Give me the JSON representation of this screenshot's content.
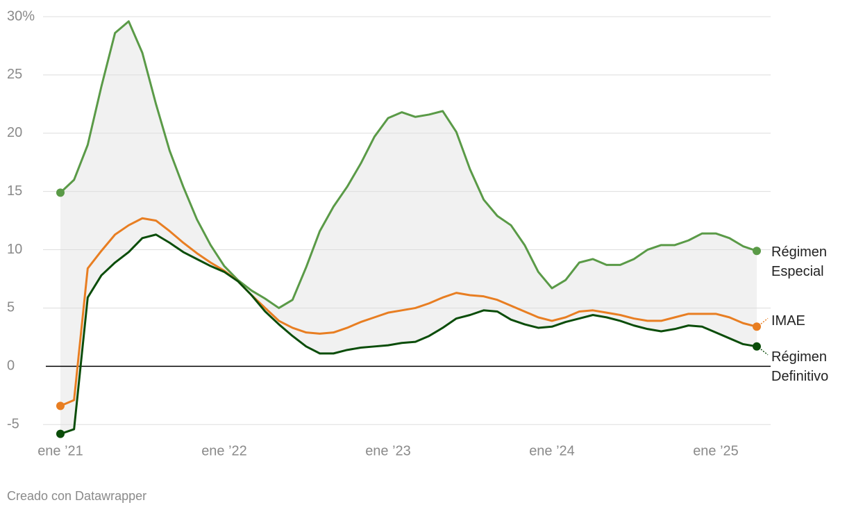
{
  "chart_data": {
    "type": "line",
    "categories": [
      "ene ’21",
      null,
      null,
      null,
      null,
      null,
      null,
      null,
      null,
      null,
      null,
      null,
      "ene ’22",
      null,
      null,
      null,
      null,
      null,
      null,
      null,
      null,
      null,
      null,
      null,
      "ene ’23",
      null,
      null,
      null,
      null,
      null,
      null,
      null,
      null,
      null,
      null,
      null,
      "ene ’24",
      null,
      null,
      null,
      null,
      null,
      null,
      null,
      null,
      null,
      null,
      null,
      "ene ’25",
      null,
      null,
      null
    ],
    "series": [
      {
        "name": "Régimen Especial",
        "color": "#5a9a47",
        "values": [
          14.9,
          16.0,
          19.0,
          24.0,
          28.6,
          29.6,
          26.9,
          22.5,
          18.5,
          15.4,
          12.6,
          10.4,
          8.6,
          7.4,
          6.5,
          5.8,
          5.0,
          5.7,
          8.5,
          11.6,
          13.7,
          15.4,
          17.4,
          19.7,
          21.3,
          21.8,
          21.4,
          21.6,
          21.9,
          20.1,
          16.9,
          14.3,
          12.9,
          12.1,
          10.4,
          8.1,
          6.7,
          7.4,
          8.9,
          9.2,
          8.7,
          8.7,
          9.2,
          10.0,
          10.4,
          10.4,
          10.8,
          11.4,
          11.4,
          11.0,
          10.3,
          9.9
        ]
      },
      {
        "name": "IMAE",
        "color": "#e87e22",
        "values": [
          -3.4,
          -2.9,
          8.4,
          9.9,
          11.3,
          12.1,
          12.7,
          12.5,
          11.6,
          10.6,
          9.7,
          8.9,
          8.2,
          7.3,
          6.1,
          5.0,
          3.9,
          3.3,
          2.9,
          2.8,
          2.9,
          3.3,
          3.8,
          4.2,
          4.6,
          4.8,
          5.0,
          5.4,
          5.9,
          6.3,
          6.1,
          6.0,
          5.7,
          5.2,
          4.7,
          4.2,
          3.9,
          4.2,
          4.7,
          4.8,
          4.6,
          4.4,
          4.1,
          3.9,
          3.9,
          4.2,
          4.5,
          4.5,
          4.5,
          4.2,
          3.7,
          3.4
        ]
      },
      {
        "name": "Régimen Definitivo",
        "color": "#0b4d0a",
        "values": [
          -5.8,
          -5.4,
          5.9,
          7.8,
          8.9,
          9.8,
          11.0,
          11.3,
          10.6,
          9.8,
          9.2,
          8.6,
          8.1,
          7.3,
          6.1,
          4.7,
          3.6,
          2.6,
          1.7,
          1.1,
          1.1,
          1.4,
          1.6,
          1.7,
          1.8,
          2.0,
          2.1,
          2.6,
          3.3,
          4.1,
          4.4,
          4.8,
          4.7,
          4.0,
          3.6,
          3.3,
          3.4,
          3.8,
          4.1,
          4.4,
          4.2,
          3.9,
          3.5,
          3.2,
          3.0,
          3.2,
          3.5,
          3.4,
          2.9,
          2.4,
          1.9,
          1.7
        ]
      }
    ],
    "ylim": [
      -6,
      30
    ],
    "yticks": [
      -5,
      0,
      5,
      10,
      15,
      20,
      25,
      {
        "value": 30,
        "label": "30%"
      }
    ],
    "grid": true,
    "band_color": "#f1f1f1",
    "source": "Creado con Datawrapper"
  }
}
